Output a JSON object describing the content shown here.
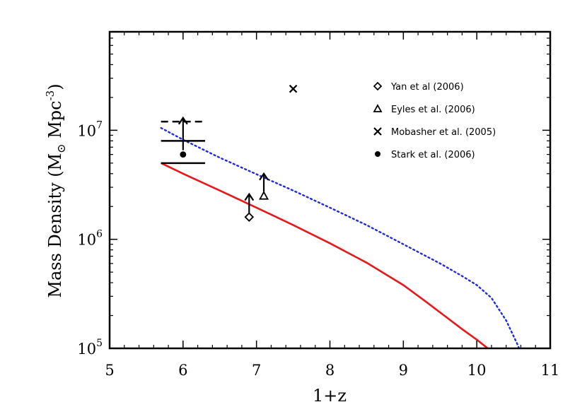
{
  "chart_data": {
    "type": "line",
    "xlabel": "1+z",
    "ylabel": {
      "prefix": "Mass Density (M",
      "sub": "⊙",
      "middle": " Mpc",
      "sup": "-3",
      "suffix": ")"
    },
    "xlim": [
      5,
      11
    ],
    "ylim": [
      100000,
      80000000
    ],
    "yscale": "log",
    "x_ticks": [
      {
        "value": 5,
        "label": "5"
      },
      {
        "value": 6,
        "label": "6"
      },
      {
        "value": 7,
        "label": "7"
      },
      {
        "value": 8,
        "label": "8"
      },
      {
        "value": 9,
        "label": "9"
      },
      {
        "value": 10,
        "label": "10"
      },
      {
        "value": 11,
        "label": "11"
      }
    ],
    "y_ticks": [
      {
        "value": 100000,
        "base": "10",
        "exp": "5"
      },
      {
        "value": 1000000,
        "base": "10",
        "exp": "6"
      },
      {
        "value": 10000000,
        "base": "10",
        "exp": "7"
      }
    ],
    "series": [
      {
        "style": "solid",
        "color": "#e8181a",
        "x": [
          5.7,
          6.0,
          6.5,
          7.0,
          7.5,
          8.0,
          8.5,
          9.0,
          9.3,
          9.6,
          9.8,
          10.0,
          10.15,
          10.27
        ],
        "y": [
          5000000,
          4000000,
          2800000,
          1950000,
          1350000,
          920000,
          610000,
          380000,
          270000,
          190000,
          150000,
          120000,
          100000,
          87000
        ]
      },
      {
        "style": "dotted",
        "color": "#1f2bd9",
        "x": [
          5.7,
          6.0,
          6.5,
          7.0,
          7.5,
          8.0,
          8.5,
          9.0,
          9.5,
          9.8,
          10.0,
          10.2,
          10.4,
          10.55,
          10.62
        ],
        "y": [
          10500000,
          8200000,
          5600000,
          3950000,
          2800000,
          1950000,
          1350000,
          900000,
          600000,
          460000,
          380000,
          290000,
          180000,
          110000,
          85000
        ]
      }
    ],
    "observations": [
      {
        "label": "Yan et al (2006)",
        "marker": "diamond",
        "x": 6.9,
        "y": 1600000,
        "arrow_to": 2600000
      },
      {
        "label": "Eyles et al. (2006)",
        "marker": "triangle",
        "x": 7.1,
        "y": 2500000,
        "arrow_to": 4000000
      },
      {
        "label": "Mobasher et al. (2005)",
        "marker": "cross",
        "x": 7.5,
        "y": 24000000
      },
      {
        "label": "Stark et al. (2006)",
        "marker": "circle",
        "x": 6.0,
        "y": 6000000,
        "arrow_to": 13000000
      }
    ],
    "bracket_lines": [
      {
        "x1": 5.7,
        "x2": 6.3,
        "y": 12000000,
        "style": "dashed"
      },
      {
        "x1": 5.7,
        "x2": 6.3,
        "y": 8000000,
        "style": "solid"
      },
      {
        "x1": 5.7,
        "x2": 6.3,
        "y": 5000000,
        "style": "solid"
      }
    ],
    "legend": {
      "position": "top-right",
      "entries": [
        {
          "label": "Yan et al (2006)",
          "marker": "diamond"
        },
        {
          "label": "Eyles et al. (2006)",
          "marker": "triangle"
        },
        {
          "label": "Mobasher et al. (2005)",
          "marker": "cross"
        },
        {
          "label": "Stark et al. (2006)",
          "marker": "circle"
        }
      ]
    }
  }
}
